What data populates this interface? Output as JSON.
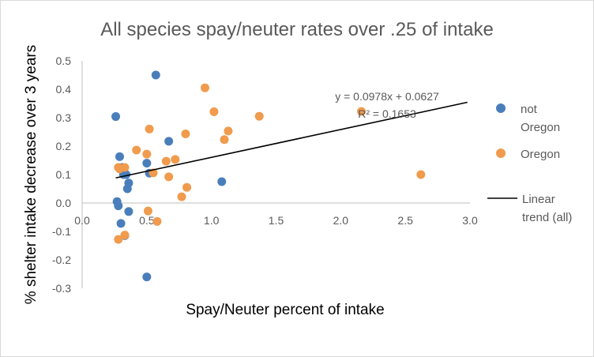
{
  "chart_data": {
    "type": "scatter",
    "title": "All species spay/neuter rates over .25 of intake",
    "xlabel": "Spay/Neuter percent of intake",
    "ylabel": "% shelter intake decrease over 3 years",
    "xlim": [
      0.0,
      3.0
    ],
    "ylim": [
      -0.3,
      0.5
    ],
    "x_ticks": [
      "0.0",
      "0.5",
      "1.0",
      "1.5",
      "2.0",
      "2.5",
      "3.0"
    ],
    "y_ticks": [
      "-0.3",
      "-0.2",
      "-0.1",
      "0.0",
      "0.1",
      "0.2",
      "0.3",
      "0.4",
      "0.5"
    ],
    "grid": false,
    "legend_position": "right",
    "series": [
      {
        "name": "not Oregon",
        "name_lines": [
          "not",
          "Oregon"
        ],
        "color": "#4a7ebb",
        "points": [
          [
            0.57,
            0.45
          ],
          [
            0.26,
            0.304
          ],
          [
            0.29,
            0.163
          ],
          [
            0.67,
            0.217
          ],
          [
            0.5,
            0.14
          ],
          [
            0.31,
            0.125
          ],
          [
            0.32,
            0.1
          ],
          [
            0.34,
            0.1
          ],
          [
            0.36,
            0.07
          ],
          [
            0.35,
            0.05
          ],
          [
            0.52,
            0.105
          ],
          [
            1.08,
            0.075
          ],
          [
            0.27,
            0.005
          ],
          [
            0.28,
            -0.01
          ],
          [
            0.36,
            -0.03
          ],
          [
            0.3,
            -0.072
          ],
          [
            0.33,
            -0.115
          ],
          [
            0.5,
            -0.26
          ]
        ]
      },
      {
        "name": "Oregon",
        "name_lines": [
          "Oregon"
        ],
        "color": "#f09b4d",
        "points": [
          [
            0.95,
            0.405
          ],
          [
            1.02,
            0.321
          ],
          [
            1.37,
            0.305
          ],
          [
            2.16,
            0.322
          ],
          [
            0.52,
            0.26
          ],
          [
            1.13,
            0.253
          ],
          [
            0.8,
            0.243
          ],
          [
            1.1,
            0.223
          ],
          [
            0.42,
            0.186
          ],
          [
            0.5,
            0.172
          ],
          [
            0.72,
            0.153
          ],
          [
            0.65,
            0.147
          ],
          [
            0.28,
            0.125
          ],
          [
            0.29,
            0.12
          ],
          [
            0.33,
            0.125
          ],
          [
            0.55,
            0.106
          ],
          [
            0.67,
            0.092
          ],
          [
            2.62,
            0.1
          ],
          [
            0.81,
            0.055
          ],
          [
            0.77,
            0.022
          ],
          [
            0.51,
            -0.028
          ],
          [
            0.58,
            -0.065
          ],
          [
            0.33,
            -0.113
          ],
          [
            0.28,
            -0.128
          ]
        ]
      }
    ],
    "trendline": {
      "name": "Linear trend (all)",
      "name_lines": [
        "Linear",
        "trend (all)"
      ],
      "slope": 0.0978,
      "intercept": 0.0627,
      "x_range": [
        0.26,
        2.98
      ],
      "color": "#000000",
      "equation": "y = 0.0978x + 0.0627",
      "r_squared": "R² = 0.1653"
    }
  }
}
